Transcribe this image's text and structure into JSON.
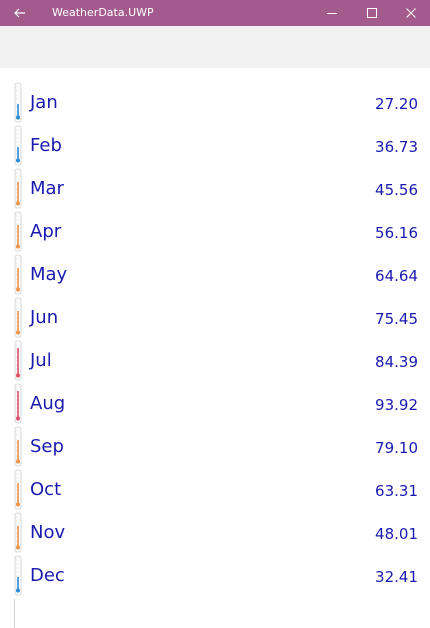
{
  "window": {
    "title": "WeatherData.UWP",
    "back_icon": "arrow-left-icon",
    "controls": [
      "minimize-icon",
      "maximize-icon",
      "close-icon"
    ],
    "accent": "#a35a8d"
  },
  "text_color": "#1a1ab0",
  "levels": {
    "cold": "#2a8cd8",
    "warm": "#f0944a",
    "hot": "#e0506a"
  },
  "months": [
    {
      "name": "Jan",
      "temp": "27.20",
      "level": "cold"
    },
    {
      "name": "Feb",
      "temp": "36.73",
      "level": "cold"
    },
    {
      "name": "Mar",
      "temp": "45.56",
      "level": "warm"
    },
    {
      "name": "Apr",
      "temp": "56.16",
      "level": "warm"
    },
    {
      "name": "May",
      "temp": "64.64",
      "level": "warm"
    },
    {
      "name": "Jun",
      "temp": "75.45",
      "level": "warm"
    },
    {
      "name": "Jul",
      "temp": "84.39",
      "level": "hot"
    },
    {
      "name": "Aug",
      "temp": "93.92",
      "level": "hot"
    },
    {
      "name": "Sep",
      "temp": "79.10",
      "level": "warm"
    },
    {
      "name": "Oct",
      "temp": "63.31",
      "level": "warm"
    },
    {
      "name": "Nov",
      "temp": "48.01",
      "level": "warm"
    },
    {
      "name": "Dec",
      "temp": "32.41",
      "level": "cold"
    }
  ]
}
